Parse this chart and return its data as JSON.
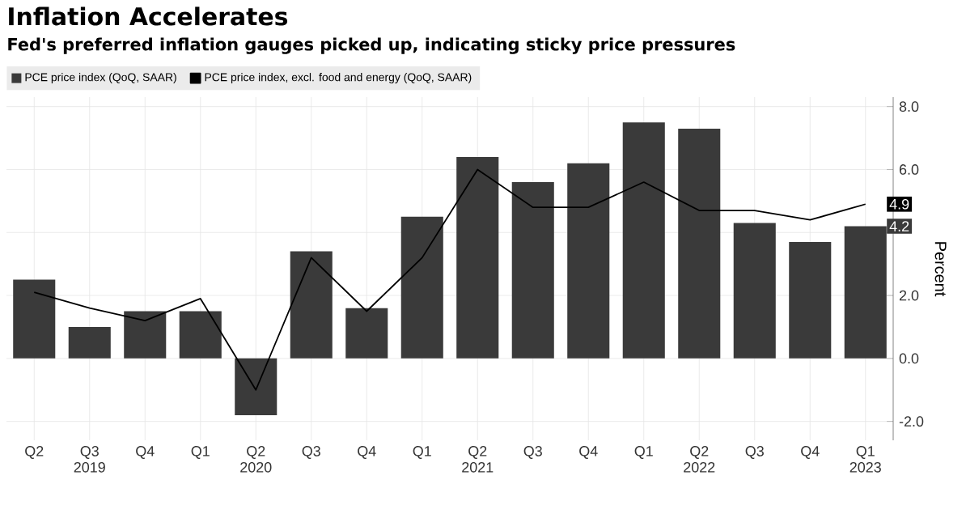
{
  "chart_data": {
    "type": "bar",
    "title": "Inflation Accelerates",
    "subtitle": "Fed's preferred inflation gauges picked up, indicating sticky price pressures",
    "ylabel": "Percent",
    "categories": [
      "Q2",
      "Q3 2019",
      "Q4",
      "Q1",
      "Q2 2020",
      "Q3",
      "Q4",
      "Q1",
      "Q2 2021",
      "Q3",
      "Q4",
      "Q1",
      "Q2 2022",
      "Q3",
      "Q4",
      "Q1 2023"
    ],
    "series": [
      {
        "name": "PCE price index (QoQ, SAAR)",
        "color": "#3a3a3a",
        "values": [
          2.5,
          1.0,
          1.5,
          1.5,
          -1.8,
          3.4,
          1.6,
          4.5,
          6.4,
          5.6,
          6.2,
          7.5,
          7.3,
          4.3,
          3.7,
          4.2
        ],
        "value_labels": [
          null,
          null,
          null,
          null,
          null,
          null,
          null,
          null,
          null,
          null,
          null,
          null,
          null,
          null,
          null,
          "4.2"
        ]
      },
      {
        "name": "PCE price index, excl. food and energy (QoQ, SAAR)",
        "type": "line",
        "color": "#000000",
        "values": [
          2.1,
          1.6,
          1.2,
          1.9,
          -1.0,
          3.2,
          1.5,
          3.2,
          6.0,
          4.8,
          4.8,
          5.6,
          4.7,
          4.7,
          4.4,
          4.9
        ],
        "value_labels": [
          null,
          null,
          null,
          null,
          null,
          null,
          null,
          null,
          null,
          null,
          null,
          null,
          null,
          null,
          null,
          "4.9"
        ]
      }
    ],
    "ylim": [
      -2.6,
      8.3
    ],
    "yticks": [
      {
        "value": -2,
        "label": "-2.0"
      },
      {
        "value": 0,
        "label": "0.0"
      },
      {
        "value": 2,
        "label": "2.0"
      },
      {
        "value": 4,
        "label": null
      },
      {
        "value": 6,
        "label": "6.0"
      },
      {
        "value": 8,
        "label": "8.0"
      }
    ],
    "grid": true,
    "legend": "top left",
    "line_style": "solid",
    "marker": "none"
  }
}
